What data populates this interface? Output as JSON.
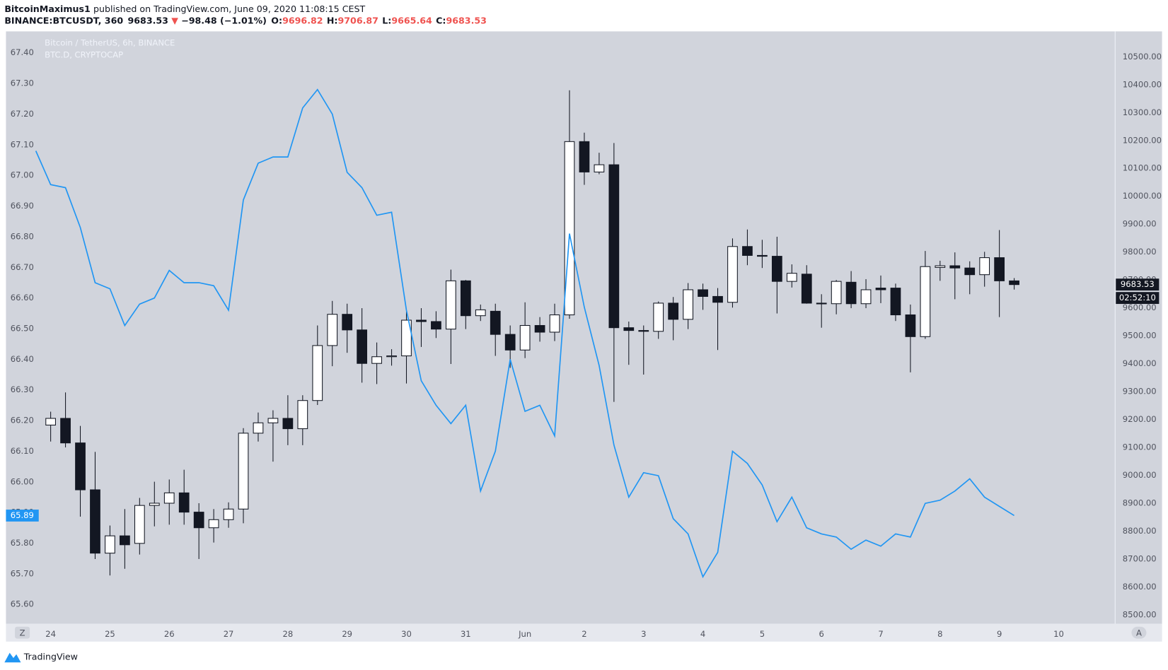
{
  "header": {
    "author": "BitcoinMaximus1",
    "published": "published on TradingView.com, June 09, 2020 11:08:15 CEST",
    "symbol": "BINANCE:BTCUSDT, 360",
    "price": "9683.53",
    "arrow": "▼",
    "change": "−98.48 (−1.01%)",
    "ohlc": [
      {
        "label": "O:",
        "value": "9696.82"
      },
      {
        "label": "H:",
        "value": "9706.87"
      },
      {
        "label": "L:",
        "value": "9665.64"
      },
      {
        "label": "C:",
        "value": "9683.53"
      }
    ]
  },
  "ui": {
    "brand": "TradingView",
    "scale_left": "Z",
    "scale_right": "A"
  },
  "chart_data": {
    "type": "candlestick",
    "countdown": "02:52:10",
    "grid": false,
    "xlim": [
      -0.754,
      17.952
    ],
    "xticks": [
      {
        "value": 0,
        "label": "24"
      },
      {
        "value": 1,
        "label": "25"
      },
      {
        "value": 2,
        "label": "26"
      },
      {
        "value": 3,
        "label": "27"
      },
      {
        "value": 4,
        "label": "28"
      },
      {
        "value": 5,
        "label": "29"
      },
      {
        "value": 6,
        "label": "30"
      },
      {
        "value": 7,
        "label": "31"
      },
      {
        "value": 8,
        "label": "Jun"
      },
      {
        "value": 9,
        "label": "2"
      },
      {
        "value": 10,
        "label": "3"
      },
      {
        "value": 11,
        "label": "4"
      },
      {
        "value": 12,
        "label": "5"
      },
      {
        "value": 13,
        "label": "6"
      },
      {
        "value": 14,
        "label": "7"
      },
      {
        "value": 15,
        "label": "8"
      },
      {
        "value": 16,
        "label": "9"
      },
      {
        "value": 17,
        "label": "10"
      }
    ],
    "ylim": [
      65.537,
      67.47
    ],
    "yticks": [
      {
        "value": 65.6,
        "label": "65.60"
      },
      {
        "value": 65.7,
        "label": "65.70"
      },
      {
        "value": 65.8,
        "label": "65.80"
      },
      {
        "value": 65.9,
        "label": "65.90"
      },
      {
        "value": 66.0,
        "label": "66.00"
      },
      {
        "value": 66.1,
        "label": "66.10"
      },
      {
        "value": 66.2,
        "label": "66.20"
      },
      {
        "value": 66.3,
        "label": "66.30"
      },
      {
        "value": 66.4,
        "label": "66.40"
      },
      {
        "value": 66.5,
        "label": "66.50"
      },
      {
        "value": 66.6,
        "label": "66.60"
      },
      {
        "value": 66.7,
        "label": "66.70"
      },
      {
        "value": 66.8,
        "label": "66.80"
      },
      {
        "value": 66.9,
        "label": "66.90"
      },
      {
        "value": 67.0,
        "label": "67.00"
      },
      {
        "value": 67.1,
        "label": "67.10"
      },
      {
        "value": 67.2,
        "label": "67.20"
      },
      {
        "value": 67.3,
        "label": "67.30"
      },
      {
        "value": 67.4,
        "label": "67.40"
      }
    ],
    "y2lim": [
      8468,
      10591
    ],
    "y2ticks": [
      {
        "value": 8500,
        "label": "8500.00"
      },
      {
        "value": 8600,
        "label": "8600.00"
      },
      {
        "value": 8700,
        "label": "8700.00"
      },
      {
        "value": 8800,
        "label": "8800.00"
      },
      {
        "value": 8900,
        "label": "8900.00"
      },
      {
        "value": 9000,
        "label": "9000.00"
      },
      {
        "value": 9100,
        "label": "9100.00"
      },
      {
        "value": 9200,
        "label": "9200.00"
      },
      {
        "value": 9300,
        "label": "9300.00"
      },
      {
        "value": 9400,
        "label": "9400.00"
      },
      {
        "value": 9500,
        "label": "9500.00"
      },
      {
        "value": 9600,
        "label": "9600.00"
      },
      {
        "value": 9700,
        "label": "9700.00"
      },
      {
        "value": 9800,
        "label": "9800.00"
      },
      {
        "value": 9900,
        "label": "9900.00"
      },
      {
        "value": 10000,
        "label": "10000.00"
      },
      {
        "value": 10100,
        "label": "10100.00"
      },
      {
        "value": 10200,
        "label": "10200.00"
      },
      {
        "value": 10300,
        "label": "10300.00"
      },
      {
        "value": 10400,
        "label": "10400.00"
      },
      {
        "value": 10500,
        "label": "10500.00"
      }
    ],
    "series": [
      {
        "name": "Bitcoin / TetherUS, 6h, BINANCE",
        "type": "candlestick",
        "axis": "y2",
        "up_color": "#ffffff",
        "down_color": "#131722",
        "x": [
          0,
          0.25,
          0.5,
          0.75,
          1,
          1.25,
          1.5,
          1.75,
          2,
          2.25,
          2.5,
          2.75,
          3,
          3.25,
          3.5,
          3.75,
          4,
          4.25,
          4.5,
          4.75,
          5,
          5.25,
          5.5,
          5.75,
          6,
          6.25,
          6.5,
          6.75,
          7,
          7.25,
          7.5,
          7.75,
          8,
          8.25,
          8.5,
          8.75,
          9,
          9.25,
          9.5,
          9.75,
          10,
          10.25,
          10.5,
          10.75,
          11,
          11.25,
          11.5,
          11.75,
          12,
          12.25,
          12.5,
          12.75,
          13,
          13.25,
          13.5,
          13.75,
          14,
          14.25,
          14.5,
          14.75,
          15,
          15.25,
          15.5,
          15.75,
          16,
          16.25
        ],
        "open": [
          9180,
          9204,
          9116,
          8948,
          8721,
          8783,
          8756,
          8892,
          8900,
          8937,
          8868,
          8812,
          8841,
          8879,
          9151,
          9188,
          9204,
          9167,
          9268,
          9465,
          9577,
          9521,
          9401,
          9425,
          9428,
          9556,
          9551,
          9524,
          9697,
          9572,
          9588,
          9505,
          9449,
          9537,
          9513,
          9575,
          10196,
          10087,
          10113,
          9529,
          9519,
          9516,
          9617,
          9559,
          9665,
          9641,
          9620,
          9820,
          9788,
          9785,
          9695,
          9721,
          9617,
          9615,
          9692,
          9615,
          9671,
          9671,
          9575,
          9497,
          9745,
          9751,
          9743,
          9719,
          9780,
          9696.82
        ],
        "high": [
          9228,
          9297,
          9177,
          9084,
          8820,
          8879,
          8919,
          8977,
          8985,
          9020,
          8900,
          8879,
          8903,
          9169,
          9225,
          9233,
          9287,
          9287,
          9537,
          9625,
          9615,
          9599,
          9476,
          9452,
          9588,
          9599,
          9588,
          9737,
          9700,
          9612,
          9615,
          9537,
          9620,
          9567,
          9615,
          10380,
          10228,
          10156,
          10191,
          9551,
          9537,
          9623,
          9639,
          9689,
          9687,
          9671,
          9849,
          9881,
          9844,
          9855,
          9756,
          9753,
          9649,
          9700,
          9732,
          9703,
          9716,
          9687,
          9612,
          9804,
          9769,
          9799,
          9767,
          9801,
          9879,
          9706.87
        ],
        "low": [
          9121,
          9100,
          8852,
          8700,
          8641,
          8665,
          8716,
          8817,
          8823,
          8823,
          8700,
          8759,
          8812,
          8828,
          9121,
          9049,
          9108,
          9108,
          9252,
          9391,
          9439,
          9332,
          9327,
          9393,
          9329,
          9460,
          9492,
          9399,
          9524,
          9553,
          9428,
          9385,
          9420,
          9479,
          9481,
          9561,
          10041,
          10079,
          9263,
          9396,
          9361,
          9489,
          9484,
          9524,
          9593,
          9449,
          9601,
          9753,
          9743,
          9580,
          9673,
          9615,
          9529,
          9577,
          9599,
          9599,
          9617,
          9553,
          9369,
          9489,
          9697,
          9631,
          9649,
          9676,
          9567,
          9665.64
        ],
        "close": [
          9204,
          9116,
          8948,
          8721,
          8783,
          8751,
          8892,
          8900,
          8937,
          8868,
          8812,
          8841,
          8879,
          9151,
          9188,
          9204,
          9167,
          9268,
          9465,
          9577,
          9521,
          9401,
          9425,
          9428,
          9556,
          9551,
          9524,
          9697,
          9572,
          9593,
          9505,
          9449,
          9537,
          9513,
          9575,
          10196,
          10087,
          10113,
          9529,
          9519,
          9516,
          9617,
          9559,
          9665,
          9641,
          9620,
          9820,
          9788,
          9785,
          9695,
          9724,
          9617,
          9615,
          9695,
          9615,
          9665,
          9665,
          9575,
          9497,
          9748,
          9751,
          9743,
          9719,
          9780,
          9697,
          9683.53
        ]
      },
      {
        "name": "BTC.D, CRYPTOCAP",
        "type": "line",
        "color": "#2196f3",
        "x": [
          -0.25,
          0,
          0.25,
          0.5,
          0.75,
          1,
          1.25,
          1.5,
          1.75,
          2,
          2.25,
          2.5,
          2.75,
          3,
          3.25,
          3.5,
          3.75,
          4,
          4.25,
          4.5,
          4.75,
          5,
          5.25,
          5.5,
          5.75,
          6,
          6.25,
          6.5,
          6.75,
          7,
          7.25,
          7.5,
          7.75,
          8,
          8.25,
          8.5,
          8.75,
          9,
          9.25,
          9.5,
          9.75,
          10,
          10.25,
          10.5,
          10.75,
          11,
          11.25,
          11.5,
          11.75,
          12,
          12.25,
          12.5,
          12.75,
          13,
          13.25,
          13.5,
          13.75,
          14,
          14.25,
          14.5,
          14.75,
          15,
          15.25,
          15.5,
          15.75,
          16,
          16.25
        ],
        "values": [
          67.08,
          66.97,
          66.96,
          66.83,
          66.65,
          66.63,
          66.51,
          66.58,
          66.6,
          66.69,
          66.65,
          66.65,
          66.64,
          66.56,
          66.92,
          67.04,
          67.06,
          67.06,
          67.22,
          67.28,
          67.2,
          67.01,
          66.96,
          66.87,
          66.88,
          66.56,
          66.33,
          66.25,
          66.19,
          66.25,
          65.97,
          66.1,
          66.4,
          66.23,
          66.25,
          66.15,
          66.81,
          66.57,
          66.38,
          66.12,
          65.95,
          66.03,
          66.02,
          65.88,
          65.83,
          65.69,
          65.77,
          66.1,
          66.06,
          65.99,
          65.87,
          65.95,
          65.85,
          65.83,
          65.82,
          65.78,
          65.81,
          65.79,
          65.83,
          65.82,
          65.93,
          65.94,
          65.97,
          66.01,
          65.95,
          65.92,
          65.89
        ]
      }
    ]
  }
}
